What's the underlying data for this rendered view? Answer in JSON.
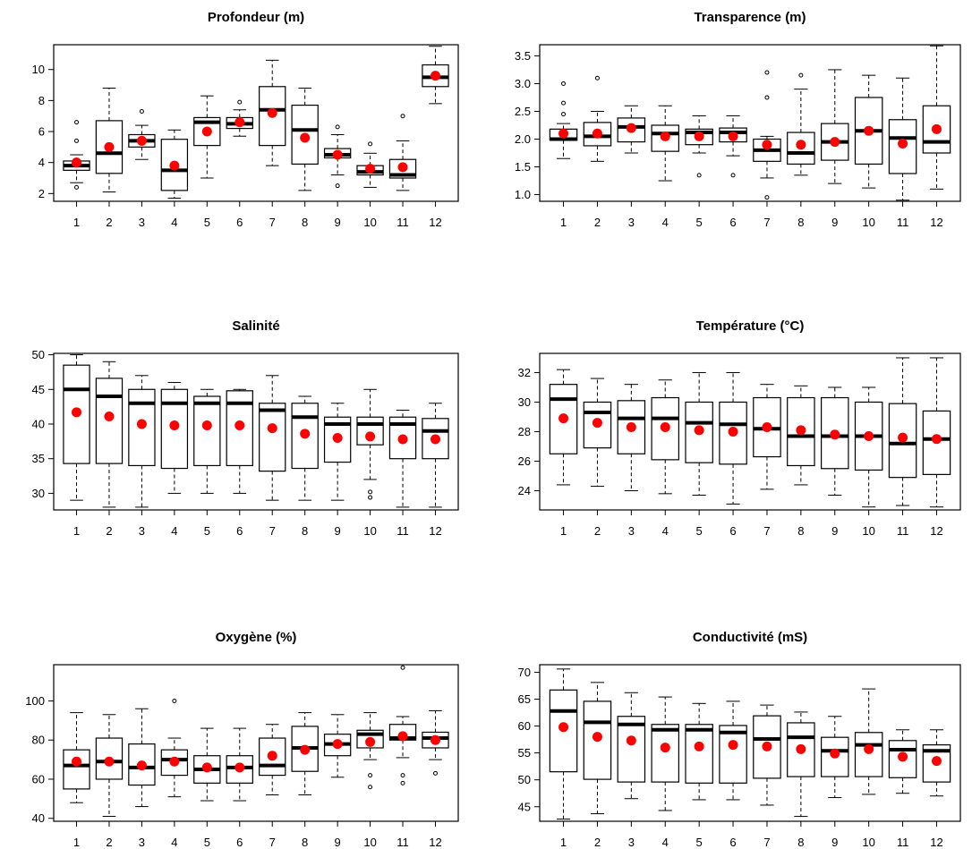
{
  "chart_data": [
    {
      "type": "boxplot",
      "title": "Profondeur (m)",
      "categories": [
        "1",
        "2",
        "3",
        "4",
        "5",
        "6",
        "7",
        "8",
        "9",
        "10",
        "11",
        "12"
      ],
      "ylim": [
        1.5,
        11.6
      ],
      "yticks": [
        2,
        4,
        6,
        8,
        10
      ],
      "ytick_labels": [
        "2",
        "4",
        "6",
        "8",
        "10"
      ],
      "boxes": [
        {
          "whisker_low": 2.7,
          "q1": 3.5,
          "median": 3.8,
          "q3": 4.1,
          "whisker_high": 4.5,
          "mean": 4.0,
          "outliers": [
            2.4,
            5.4,
            6.6
          ]
        },
        {
          "whisker_low": 2.1,
          "q1": 3.3,
          "median": 4.6,
          "q3": 6.7,
          "whisker_high": 8.8,
          "mean": 5.0,
          "outliers": []
        },
        {
          "whisker_low": 4.2,
          "q1": 5.0,
          "median": 5.4,
          "q3": 5.8,
          "whisker_high": 6.4,
          "mean": 5.4,
          "outliers": [
            7.3
          ]
        },
        {
          "whisker_low": 1.7,
          "q1": 2.2,
          "median": 3.5,
          "q3": 5.5,
          "whisker_high": 6.1,
          "mean": 3.8,
          "outliers": []
        },
        {
          "whisker_low": 3.0,
          "q1": 5.1,
          "median": 6.6,
          "q3": 6.9,
          "whisker_high": 8.3,
          "mean": 6.0,
          "outliers": []
        },
        {
          "whisker_low": 5.7,
          "q1": 6.2,
          "median": 6.5,
          "q3": 6.9,
          "whisker_high": 7.4,
          "mean": 6.6,
          "outliers": [
            7.9
          ]
        },
        {
          "whisker_low": 3.8,
          "q1": 5.1,
          "median": 7.4,
          "q3": 8.9,
          "whisker_high": 10.6,
          "mean": 7.2,
          "outliers": []
        },
        {
          "whisker_low": 2.2,
          "q1": 3.9,
          "median": 6.1,
          "q3": 7.7,
          "whisker_high": 8.8,
          "mean": 5.6,
          "outliers": []
        },
        {
          "whisker_low": 3.2,
          "q1": 4.3,
          "median": 4.5,
          "q3": 4.9,
          "whisker_high": 5.8,
          "mean": 4.5,
          "outliers": [
            2.5,
            6.3
          ]
        },
        {
          "whisker_low": 2.4,
          "q1": 3.2,
          "median": 3.4,
          "q3": 3.8,
          "whisker_high": 4.6,
          "mean": 3.6,
          "outliers": [
            5.2
          ]
        },
        {
          "whisker_low": 2.2,
          "q1": 3.0,
          "median": 3.2,
          "q3": 4.2,
          "whisker_high": 5.4,
          "mean": 3.7,
          "outliers": [
            7.0
          ]
        },
        {
          "whisker_low": 7.8,
          "q1": 8.9,
          "median": 9.5,
          "q3": 10.3,
          "whisker_high": 11.5,
          "mean": 9.6,
          "outliers": []
        }
      ],
      "median_color": "#000000",
      "mean_color": "#ff0000",
      "grid": false
    },
    {
      "type": "boxplot",
      "title": "Transparence (m)",
      "categories": [
        "1",
        "2",
        "3",
        "4",
        "5",
        "6",
        "7",
        "8",
        "9",
        "10",
        "11",
        "12"
      ],
      "ylim": [
        0.88,
        3.7
      ],
      "yticks": [
        1.0,
        1.5,
        2.0,
        2.5,
        3.0,
        3.5
      ],
      "ytick_labels": [
        "1.0",
        "1.5",
        "2.0",
        "2.5",
        "3.0",
        "3.5"
      ],
      "boxes": [
        {
          "whisker_low": 1.65,
          "q1": 1.98,
          "median": 2.0,
          "q3": 2.18,
          "whisker_high": 2.28,
          "mean": 2.1,
          "outliers": [
            2.45,
            2.65,
            3.0
          ]
        },
        {
          "whisker_low": 1.6,
          "q1": 1.88,
          "median": 2.05,
          "q3": 2.3,
          "whisker_high": 2.5,
          "mean": 2.1,
          "outliers": [
            3.1
          ]
        },
        {
          "whisker_low": 1.75,
          "q1": 1.95,
          "median": 2.22,
          "q3": 2.38,
          "whisker_high": 2.6,
          "mean": 2.2,
          "outliers": []
        },
        {
          "whisker_low": 1.25,
          "q1": 1.78,
          "median": 2.1,
          "q3": 2.25,
          "whisker_high": 2.6,
          "mean": 2.05,
          "outliers": []
        },
        {
          "whisker_low": 1.75,
          "q1": 1.9,
          "median": 2.12,
          "q3": 2.18,
          "whisker_high": 2.42,
          "mean": 2.05,
          "outliers": [
            1.35
          ]
        },
        {
          "whisker_low": 1.7,
          "q1": 1.95,
          "median": 2.12,
          "q3": 2.2,
          "whisker_high": 2.42,
          "mean": 2.05,
          "outliers": [
            1.35
          ]
        },
        {
          "whisker_low": 1.3,
          "q1": 1.6,
          "median": 1.8,
          "q3": 2.0,
          "whisker_high": 2.05,
          "mean": 1.9,
          "outliers": [
            0.95,
            2.75,
            3.2
          ]
        },
        {
          "whisker_low": 1.35,
          "q1": 1.55,
          "median": 1.75,
          "q3": 2.12,
          "whisker_high": 2.9,
          "mean": 1.9,
          "outliers": [
            3.15
          ]
        },
        {
          "whisker_low": 1.2,
          "q1": 1.62,
          "median": 1.95,
          "q3": 2.28,
          "whisker_high": 3.25,
          "mean": 1.95,
          "outliers": []
        },
        {
          "whisker_low": 1.12,
          "q1": 1.55,
          "median": 2.15,
          "q3": 2.75,
          "whisker_high": 3.15,
          "mean": 2.15,
          "outliers": []
        },
        {
          "whisker_low": 0.9,
          "q1": 1.38,
          "median": 2.02,
          "q3": 2.35,
          "whisker_high": 3.1,
          "mean": 1.92,
          "outliers": []
        },
        {
          "whisker_low": 1.1,
          "q1": 1.75,
          "median": 1.95,
          "q3": 2.6,
          "whisker_high": 3.68,
          "mean": 2.18,
          "outliers": []
        }
      ],
      "median_color": "#000000",
      "mean_color": "#ff0000",
      "grid": false
    },
    {
      "type": "boxplot",
      "title": "Salinité",
      "categories": [
        "1",
        "2",
        "3",
        "4",
        "5",
        "6",
        "7",
        "8",
        "9",
        "10",
        "11",
        "12"
      ],
      "ylim": [
        27.6,
        50.2
      ],
      "yticks": [
        30,
        35,
        40,
        45,
        50
      ],
      "ytick_labels": [
        "30",
        "35",
        "40",
        "45",
        "50"
      ],
      "boxes": [
        {
          "whisker_low": 29,
          "q1": 34.3,
          "median": 45.0,
          "q3": 48.5,
          "whisker_high": 50,
          "mean": 41.7,
          "outliers": []
        },
        {
          "whisker_low": 28,
          "q1": 34.3,
          "median": 44.0,
          "q3": 46.6,
          "whisker_high": 49,
          "mean": 41.1,
          "outliers": []
        },
        {
          "whisker_low": 28,
          "q1": 34.0,
          "median": 43.0,
          "q3": 45.0,
          "whisker_high": 47,
          "mean": 40.0,
          "outliers": []
        },
        {
          "whisker_low": 30,
          "q1": 33.6,
          "median": 43.0,
          "q3": 45.0,
          "whisker_high": 46,
          "mean": 39.8,
          "outliers": []
        },
        {
          "whisker_low": 30,
          "q1": 34.0,
          "median": 43.0,
          "q3": 44.0,
          "whisker_high": 45,
          "mean": 39.8,
          "outliers": []
        },
        {
          "whisker_low": 30,
          "q1": 34.0,
          "median": 43.0,
          "q3": 44.8,
          "whisker_high": 45,
          "mean": 39.8,
          "outliers": []
        },
        {
          "whisker_low": 29,
          "q1": 33.2,
          "median": 42.0,
          "q3": 43.0,
          "whisker_high": 47,
          "mean": 39.4,
          "outliers": []
        },
        {
          "whisker_low": 29,
          "q1": 33.6,
          "median": 41.0,
          "q3": 43.0,
          "whisker_high": 44,
          "mean": 38.6,
          "outliers": []
        },
        {
          "whisker_low": 29,
          "q1": 34.5,
          "median": 40.0,
          "q3": 41.0,
          "whisker_high": 43,
          "mean": 38.0,
          "outliers": []
        },
        {
          "whisker_low": 32,
          "q1": 37.0,
          "median": 40.0,
          "q3": 41.0,
          "whisker_high": 45,
          "mean": 38.2,
          "outliers": [
            29.4,
            30.2
          ]
        },
        {
          "whisker_low": 28,
          "q1": 35.0,
          "median": 40.0,
          "q3": 41.0,
          "whisker_high": 42,
          "mean": 37.8,
          "outliers": []
        },
        {
          "whisker_low": 28,
          "q1": 35.0,
          "median": 39.0,
          "q3": 40.8,
          "whisker_high": 43,
          "mean": 37.8,
          "outliers": []
        }
      ],
      "median_color": "#000000",
      "mean_color": "#ff0000",
      "grid": false
    },
    {
      "type": "boxplot",
      "title": "Température (°C)",
      "categories": [
        "1",
        "2",
        "3",
        "4",
        "5",
        "6",
        "7",
        "8",
        "9",
        "10",
        "11",
        "12"
      ],
      "ylim": [
        22.7,
        33.3
      ],
      "yticks": [
        24,
        26,
        28,
        30,
        32
      ],
      "ytick_labels": [
        "24",
        "26",
        "28",
        "30",
        "32"
      ],
      "boxes": [
        {
          "whisker_low": 24.4,
          "q1": 26.5,
          "median": 30.2,
          "q3": 31.2,
          "whisker_high": 32.2,
          "mean": 28.9,
          "outliers": []
        },
        {
          "whisker_low": 24.3,
          "q1": 26.9,
          "median": 29.3,
          "q3": 30.0,
          "whisker_high": 31.6,
          "mean": 28.6,
          "outliers": []
        },
        {
          "whisker_low": 24.0,
          "q1": 26.5,
          "median": 28.9,
          "q3": 30.1,
          "whisker_high": 31.2,
          "mean": 28.3,
          "outliers": []
        },
        {
          "whisker_low": 23.8,
          "q1": 26.1,
          "median": 28.9,
          "q3": 30.3,
          "whisker_high": 31.5,
          "mean": 28.3,
          "outliers": []
        },
        {
          "whisker_low": 23.7,
          "q1": 25.9,
          "median": 28.6,
          "q3": 30.0,
          "whisker_high": 32.0,
          "mean": 28.1,
          "outliers": []
        },
        {
          "whisker_low": 23.1,
          "q1": 25.8,
          "median": 28.5,
          "q3": 30.0,
          "whisker_high": 32.0,
          "mean": 28.0,
          "outliers": []
        },
        {
          "whisker_low": 24.1,
          "q1": 26.3,
          "median": 28.2,
          "q3": 30.3,
          "whisker_high": 31.2,
          "mean": 28.3,
          "outliers": []
        },
        {
          "whisker_low": 24.4,
          "q1": 25.7,
          "median": 27.7,
          "q3": 30.3,
          "whisker_high": 31.1,
          "mean": 28.1,
          "outliers": []
        },
        {
          "whisker_low": 23.7,
          "q1": 25.5,
          "median": 27.7,
          "q3": 30.3,
          "whisker_high": 31.0,
          "mean": 27.8,
          "outliers": []
        },
        {
          "whisker_low": 22.9,
          "q1": 25.4,
          "median": 27.7,
          "q3": 30.0,
          "whisker_high": 31.0,
          "mean": 27.7,
          "outliers": []
        },
        {
          "whisker_low": 23.0,
          "q1": 24.9,
          "median": 27.2,
          "q3": 29.9,
          "whisker_high": 33.0,
          "mean": 27.6,
          "outliers": []
        },
        {
          "whisker_low": 22.9,
          "q1": 25.1,
          "median": 27.5,
          "q3": 29.4,
          "whisker_high": 33.0,
          "mean": 27.5,
          "outliers": []
        }
      ],
      "median_color": "#000000",
      "mean_color": "#ff0000",
      "grid": false
    },
    {
      "type": "boxplot",
      "title": "Oxygène (%)",
      "categories": [
        "1",
        "2",
        "3",
        "4",
        "5",
        "6",
        "7",
        "8",
        "9",
        "10",
        "11",
        "12"
      ],
      "ylim": [
        38.5,
        118.5
      ],
      "yticks": [
        40,
        60,
        80,
        100
      ],
      "ytick_labels": [
        "40",
        "60",
        "80",
        "100"
      ],
      "boxes": [
        {
          "whisker_low": 48,
          "q1": 55,
          "median": 67,
          "q3": 75,
          "whisker_high": 94,
          "mean": 69,
          "outliers": []
        },
        {
          "whisker_low": 41,
          "q1": 60,
          "median": 69,
          "q3": 81,
          "whisker_high": 93,
          "mean": 69,
          "outliers": []
        },
        {
          "whisker_low": 46,
          "q1": 57,
          "median": 66,
          "q3": 78,
          "whisker_high": 96,
          "mean": 67,
          "outliers": []
        },
        {
          "whisker_low": 51,
          "q1": 62,
          "median": 70,
          "q3": 75,
          "whisker_high": 81,
          "mean": 69,
          "outliers": [
            100
          ]
        },
        {
          "whisker_low": 49,
          "q1": 58,
          "median": 65,
          "q3": 72,
          "whisker_high": 86,
          "mean": 66,
          "outliers": []
        },
        {
          "whisker_low": 49,
          "q1": 58,
          "median": 66,
          "q3": 72,
          "whisker_high": 86,
          "mean": 66,
          "outliers": []
        },
        {
          "whisker_low": 52,
          "q1": 62,
          "median": 67,
          "q3": 81,
          "whisker_high": 88,
          "mean": 72,
          "outliers": []
        },
        {
          "whisker_low": 52,
          "q1": 64,
          "median": 76,
          "q3": 87,
          "whisker_high": 94,
          "mean": 75,
          "outliers": []
        },
        {
          "whisker_low": 61,
          "q1": 72,
          "median": 78,
          "q3": 83,
          "whisker_high": 93,
          "mean": 78,
          "outliers": []
        },
        {
          "whisker_low": 70,
          "q1": 76,
          "median": 83,
          "q3": 85,
          "whisker_high": 94,
          "mean": 79,
          "outliers": [
            56,
            62
          ]
        },
        {
          "whisker_low": 71,
          "q1": 80,
          "median": 81,
          "q3": 88,
          "whisker_high": 92,
          "mean": 82,
          "outliers": [
            58,
            62,
            117
          ]
        },
        {
          "whisker_low": 70,
          "q1": 76,
          "median": 81,
          "q3": 84,
          "whisker_high": 95,
          "mean": 80,
          "outliers": [
            63
          ]
        }
      ],
      "median_color": "#000000",
      "mean_color": "#ff0000",
      "grid": false
    },
    {
      "type": "boxplot",
      "title": "Conductivité (mS)",
      "categories": [
        "1",
        "2",
        "3",
        "4",
        "5",
        "6",
        "7",
        "8",
        "9",
        "10",
        "11",
        "12"
      ],
      "ylim": [
        42.3,
        71.4
      ],
      "yticks": [
        45,
        50,
        55,
        60,
        65,
        70
      ],
      "ytick_labels": [
        "45",
        "50",
        "55",
        "60",
        "65",
        "70"
      ],
      "boxes": [
        {
          "whisker_low": 42.7,
          "q1": 51.5,
          "median": 62.8,
          "q3": 66.7,
          "whisker_high": 70.6,
          "mean": 59.8,
          "outliers": []
        },
        {
          "whisker_low": 43.7,
          "q1": 50.1,
          "median": 60.7,
          "q3": 64.6,
          "whisker_high": 68.1,
          "mean": 58.0,
          "outliers": []
        },
        {
          "whisker_low": 46.5,
          "q1": 49.6,
          "median": 60.3,
          "q3": 61.8,
          "whisker_high": 66.2,
          "mean": 57.3,
          "outliers": []
        },
        {
          "whisker_low": 44.3,
          "q1": 49.6,
          "median": 59.3,
          "q3": 60.3,
          "whisker_high": 65.4,
          "mean": 56.0,
          "outliers": []
        },
        {
          "whisker_low": 46.3,
          "q1": 49.4,
          "median": 59.3,
          "q3": 60.3,
          "whisker_high": 64.2,
          "mean": 56.2,
          "outliers": []
        },
        {
          "whisker_low": 46.3,
          "q1": 49.4,
          "median": 58.8,
          "q3": 60.1,
          "whisker_high": 64.6,
          "mean": 56.5,
          "outliers": []
        },
        {
          "whisker_low": 45.3,
          "q1": 50.3,
          "median": 57.6,
          "q3": 61.9,
          "whisker_high": 63.9,
          "mean": 56.2,
          "outliers": []
        },
        {
          "whisker_low": 43.2,
          "q1": 50.6,
          "median": 57.9,
          "q3": 60.6,
          "whisker_high": 62.6,
          "mean": 55.7,
          "outliers": []
        },
        {
          "whisker_low": 46.7,
          "q1": 50.6,
          "median": 55.4,
          "q3": 57.9,
          "whisker_high": 61.8,
          "mean": 54.9,
          "outliers": []
        },
        {
          "whisker_low": 47.3,
          "q1": 50.6,
          "median": 56.5,
          "q3": 58.8,
          "whisker_high": 66.9,
          "mean": 55.7,
          "outliers": []
        },
        {
          "whisker_low": 47.5,
          "q1": 50.4,
          "median": 55.6,
          "q3": 57.3,
          "whisker_high": 59.3,
          "mean": 54.3,
          "outliers": []
        },
        {
          "whisker_low": 47.0,
          "q1": 49.6,
          "median": 55.4,
          "q3": 56.5,
          "whisker_high": 59.3,
          "mean": 53.5,
          "outliers": []
        }
      ],
      "median_color": "#000000",
      "mean_color": "#ff0000",
      "grid": false
    }
  ]
}
